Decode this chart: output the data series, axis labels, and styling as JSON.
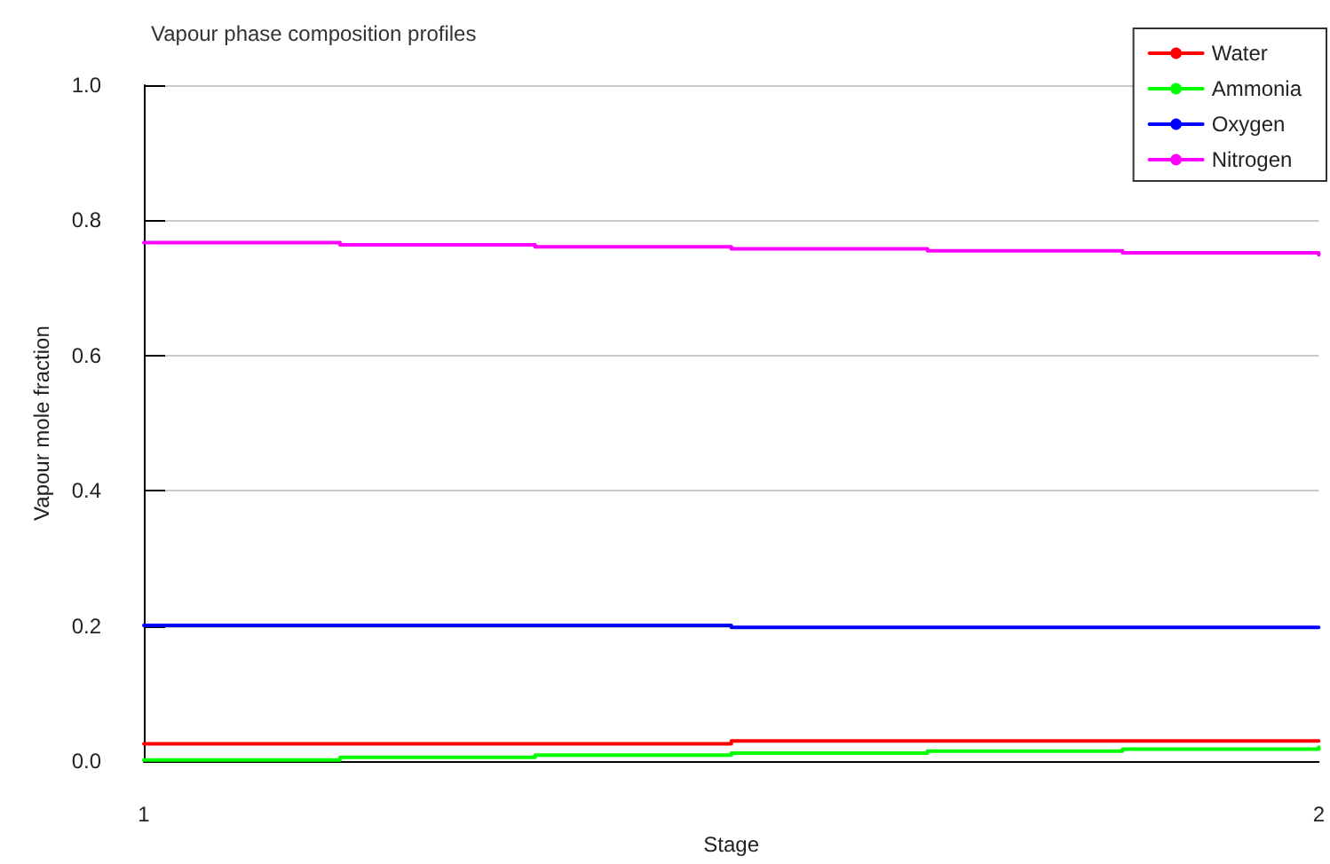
{
  "chart_data": {
    "type": "step",
    "title": "Vapour phase composition profiles",
    "xlabel": "Stage",
    "ylabel": "Vapour mole fraction",
    "xlim": [
      1,
      2
    ],
    "xticks": [
      1,
      2
    ],
    "ylim": [
      0,
      1
    ],
    "yticks": [
      {
        "value": 0,
        "label": "0.0"
      },
      0.2,
      0.4,
      0.6,
      0.8,
      {
        "value": 1,
        "label": "1.0"
      }
    ],
    "grid": "y",
    "legend": "top right",
    "line_style": "solid",
    "series": [
      {
        "name": "Water",
        "color": "#ff0000",
        "x": [
          1,
          1.5,
          2
        ],
        "values": [
          0.026,
          0.03,
          0.03
        ]
      },
      {
        "name": "Ammonia",
        "color": "#00ff00",
        "x": [
          1,
          1.167,
          1.333,
          1.5,
          1.667,
          1.833,
          2
        ],
        "values": [
          0.002,
          0.006,
          0.009,
          0.012,
          0.015,
          0.018,
          0.021
        ]
      },
      {
        "name": "Oxygen",
        "color": "#0000ff",
        "x": [
          1,
          1.5,
          2
        ],
        "values": [
          0.201,
          0.198,
          0.198
        ]
      },
      {
        "name": "Nitrogen",
        "color": "#ff00ff",
        "x": [
          1,
          1.167,
          1.333,
          1.5,
          1.667,
          1.833,
          2
        ],
        "values": [
          0.767,
          0.764,
          0.761,
          0.758,
          0.755,
          0.752,
          0.749
        ]
      }
    ]
  }
}
